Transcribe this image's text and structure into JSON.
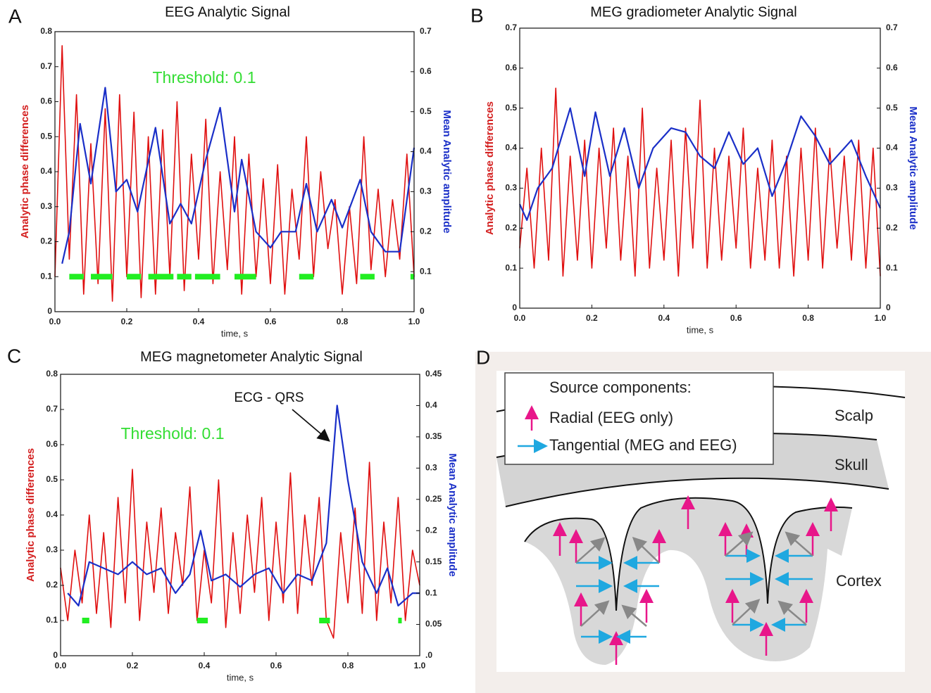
{
  "chart_data": [
    {
      "type": "line",
      "panel": "A",
      "title": "EEG Analytic Signal",
      "xlabel": "time, s",
      "ylabel": "Analytic phase differences",
      "y2label": "Mean Analytic amplitude",
      "xlim": [
        0,
        1
      ],
      "xticks": [
        {
          "value": 0,
          "label": "0.0"
        },
        0.2,
        0.4,
        0.6,
        0.8,
        {
          "value": 1,
          "label": "1.0"
        }
      ],
      "ylim": [
        0,
        0.8
      ],
      "yticks": [
        0,
        0.1,
        0.2,
        0.3,
        0.4,
        0.5,
        0.6,
        0.7,
        0.8
      ],
      "y2lim": [
        0,
        0.7
      ],
      "y2ticks": [
        0,
        0.1,
        0.2,
        0.3,
        0.4,
        0.5,
        0.6,
        0.7
      ],
      "series": [
        {
          "color": "#e01010",
          "x": [
            0,
            0.02,
            0.04,
            0.06,
            0.08,
            0.1,
            0.12,
            0.14,
            0.16,
            0.18,
            0.2,
            0.22,
            0.24,
            0.26,
            0.28,
            0.3,
            0.32,
            0.34,
            0.36,
            0.38,
            0.4,
            0.42,
            0.44,
            0.46,
            0.48,
            0.5,
            0.52,
            0.54,
            0.56,
            0.58,
            0.6,
            0.62,
            0.64,
            0.66,
            0.68,
            0.7,
            0.72,
            0.74,
            0.76,
            0.78,
            0.8,
            0.82,
            0.84,
            0.86,
            0.88,
            0.9,
            0.92,
            0.94,
            0.96,
            0.98,
            1.0
          ],
          "values": [
            0.1,
            0.76,
            0.15,
            0.62,
            0.05,
            0.48,
            0.08,
            0.58,
            0.03,
            0.62,
            0.1,
            0.57,
            0.04,
            0.5,
            0.05,
            0.52,
            0.1,
            0.6,
            0.06,
            0.45,
            0.15,
            0.55,
            0.08,
            0.4,
            0.12,
            0.5,
            0.05,
            0.45,
            0.1,
            0.38,
            0.08,
            0.42,
            0.05,
            0.35,
            0.15,
            0.5,
            0.1,
            0.4,
            0.18,
            0.32,
            0.05,
            0.3,
            0.08,
            0.5,
            0.12,
            0.35,
            0.1,
            0.32,
            0.15,
            0.45,
            0.1
          ]
        },
        {
          "color": "#1a2fc8",
          "axis": "y2",
          "x": [
            0.02,
            0.04,
            0.07,
            0.1,
            0.14,
            0.17,
            0.2,
            0.23,
            0.28,
            0.32,
            0.35,
            0.38,
            0.42,
            0.46,
            0.5,
            0.52,
            0.56,
            0.6,
            0.63,
            0.67,
            0.7,
            0.73,
            0.77,
            0.8,
            0.85,
            0.88,
            0.92,
            0.96,
            1.0
          ],
          "values": [
            0.12,
            0.2,
            0.47,
            0.32,
            0.56,
            0.3,
            0.33,
            0.25,
            0.46,
            0.22,
            0.27,
            0.22,
            0.38,
            0.51,
            0.25,
            0.38,
            0.2,
            0.16,
            0.2,
            0.2,
            0.32,
            0.2,
            0.28,
            0.21,
            0.33,
            0.2,
            0.15,
            0.15,
            0.41
          ]
        }
      ],
      "threshold": {
        "label": "Threshold: 0.1",
        "value": 0.1,
        "segments": [
          [
            0.04,
            0.08
          ],
          [
            0.1,
            0.16
          ],
          [
            0.2,
            0.24
          ],
          [
            0.26,
            0.33
          ],
          [
            0.34,
            0.38
          ],
          [
            0.39,
            0.46
          ],
          [
            0.5,
            0.56
          ],
          [
            0.68,
            0.72
          ],
          [
            0.85,
            0.89
          ],
          [
            0.99,
            1.0
          ]
        ]
      }
    },
    {
      "type": "line",
      "panel": "B",
      "title": "MEG gradiometer Analytic Signal",
      "xlabel": "time, s",
      "ylabel": "Analytic phase differences",
      "y2label": "Mean Analytic amplitude",
      "xlim": [
        0,
        1
      ],
      "xticks": [
        {
          "value": 0,
          "label": "0.0"
        },
        0.2,
        0.4,
        0.6,
        0.8,
        {
          "value": 1,
          "label": "1.0"
        }
      ],
      "ylim": [
        0,
        0.7
      ],
      "yticks": [
        0,
        0.1,
        0.2,
        0.3,
        0.4,
        0.5,
        0.6,
        0.7
      ],
      "y2lim": [
        0,
        0.7
      ],
      "y2ticks": [
        0,
        0.1,
        0.2,
        0.3,
        0.4,
        0.5,
        0.6,
        0.7
      ],
      "series": [
        {
          "color": "#e01010",
          "x": [
            0,
            0.02,
            0.04,
            0.06,
            0.08,
            0.1,
            0.12,
            0.14,
            0.16,
            0.18,
            0.2,
            0.22,
            0.24,
            0.26,
            0.28,
            0.3,
            0.32,
            0.34,
            0.36,
            0.38,
            0.4,
            0.42,
            0.44,
            0.46,
            0.48,
            0.5,
            0.52,
            0.54,
            0.56,
            0.58,
            0.6,
            0.62,
            0.64,
            0.66,
            0.68,
            0.7,
            0.72,
            0.74,
            0.76,
            0.78,
            0.8,
            0.82,
            0.84,
            0.86,
            0.88,
            0.9,
            0.92,
            0.94,
            0.96,
            0.98,
            1.0
          ],
          "values": [
            0.15,
            0.35,
            0.1,
            0.4,
            0.12,
            0.55,
            0.08,
            0.38,
            0.12,
            0.42,
            0.1,
            0.4,
            0.15,
            0.45,
            0.12,
            0.38,
            0.08,
            0.5,
            0.1,
            0.35,
            0.12,
            0.42,
            0.08,
            0.45,
            0.15,
            0.52,
            0.1,
            0.4,
            0.12,
            0.38,
            0.15,
            0.45,
            0.1,
            0.35,
            0.12,
            0.42,
            0.1,
            0.38,
            0.08,
            0.4,
            0.12,
            0.45,
            0.1,
            0.4,
            0.15,
            0.38,
            0.12,
            0.42,
            0.1,
            0.4,
            0.08
          ]
        },
        {
          "color": "#1a2fc8",
          "axis": "y2",
          "x": [
            0,
            0.02,
            0.05,
            0.09,
            0.14,
            0.18,
            0.21,
            0.25,
            0.29,
            0.33,
            0.37,
            0.42,
            0.46,
            0.5,
            0.54,
            0.58,
            0.62,
            0.66,
            0.7,
            0.74,
            0.78,
            0.82,
            0.86,
            0.9,
            0.92,
            0.96,
            1.0
          ],
          "values": [
            0.26,
            0.22,
            0.3,
            0.35,
            0.5,
            0.33,
            0.49,
            0.33,
            0.45,
            0.3,
            0.4,
            0.45,
            0.44,
            0.38,
            0.35,
            0.44,
            0.36,
            0.4,
            0.28,
            0.37,
            0.48,
            0.43,
            0.36,
            0.4,
            0.42,
            0.33,
            0.25
          ]
        }
      ]
    },
    {
      "type": "line",
      "panel": "C",
      "title": "MEG magnetometer Analytic Signal",
      "xlabel": "time, s",
      "ylabel": "Analytic phase differences",
      "y2label": "Mean Analytic amplitude",
      "annotation": "ECG - QRS",
      "xlim": [
        0,
        1
      ],
      "xticks": [
        {
          "value": 0,
          "label": "0.0"
        },
        0.2,
        0.4,
        0.6,
        0.8,
        {
          "value": 1,
          "label": "1.0"
        }
      ],
      "ylim": [
        0,
        0.8
      ],
      "yticks": [
        0,
        0.1,
        0.2,
        0.3,
        0.4,
        0.5,
        0.6,
        0.7,
        0.8
      ],
      "y2lim": [
        0,
        0.45
      ],
      "y2ticks": [
        {
          "value": 0,
          "label": ".0"
        },
        0.05,
        0.1,
        0.15,
        0.2,
        0.25,
        0.3,
        0.35,
        0.4,
        0.45
      ],
      "series": [
        {
          "color": "#e01010",
          "x": [
            0,
            0.02,
            0.04,
            0.06,
            0.08,
            0.1,
            0.12,
            0.14,
            0.16,
            0.18,
            0.2,
            0.22,
            0.24,
            0.26,
            0.28,
            0.3,
            0.32,
            0.34,
            0.36,
            0.38,
            0.4,
            0.42,
            0.44,
            0.46,
            0.48,
            0.5,
            0.52,
            0.54,
            0.56,
            0.58,
            0.6,
            0.62,
            0.64,
            0.66,
            0.68,
            0.7,
            0.72,
            0.74,
            0.76,
            0.78,
            0.8,
            0.82,
            0.84,
            0.86,
            0.88,
            0.9,
            0.92,
            0.94,
            0.96,
            0.98,
            1.0
          ],
          "values": [
            0.25,
            0.1,
            0.3,
            0.15,
            0.4,
            0.12,
            0.35,
            0.08,
            0.45,
            0.15,
            0.53,
            0.1,
            0.38,
            0.18,
            0.42,
            0.12,
            0.35,
            0.2,
            0.48,
            0.1,
            0.3,
            0.15,
            0.5,
            0.08,
            0.35,
            0.12,
            0.4,
            0.18,
            0.45,
            0.1,
            0.38,
            0.15,
            0.52,
            0.12,
            0.4,
            0.2,
            0.45,
            0.1,
            0.05,
            0.35,
            0.15,
            0.42,
            0.12,
            0.55,
            0.1,
            0.38,
            0.15,
            0.45,
            0.1,
            0.3,
            0.2
          ]
        },
        {
          "color": "#1a2fc8",
          "axis": "y2",
          "x": [
            0.02,
            0.05,
            0.08,
            0.12,
            0.16,
            0.2,
            0.24,
            0.28,
            0.32,
            0.36,
            0.39,
            0.42,
            0.46,
            0.5,
            0.54,
            0.58,
            0.62,
            0.66,
            0.7,
            0.74,
            0.77,
            0.8,
            0.84,
            0.88,
            0.91,
            0.94,
            0.98,
            1.0
          ],
          "values": [
            0.1,
            0.08,
            0.15,
            0.14,
            0.13,
            0.15,
            0.13,
            0.14,
            0.1,
            0.13,
            0.2,
            0.12,
            0.13,
            0.11,
            0.13,
            0.14,
            0.1,
            0.13,
            0.12,
            0.18,
            0.4,
            0.28,
            0.15,
            0.1,
            0.14,
            0.08,
            0.1,
            0.1
          ]
        }
      ],
      "threshold": {
        "label": "Threshold: 0.1",
        "value": 0.1,
        "segments": [
          [
            0.06,
            0.08
          ],
          [
            0.38,
            0.41
          ],
          [
            0.72,
            0.75
          ],
          [
            0.94,
            0.95
          ]
        ]
      }
    }
  ],
  "diagram": {
    "panel": "D",
    "legend_title": "Source components:",
    "legend_items": [
      "Radial (EEG only)",
      "Tangential (MEG and EEG)"
    ],
    "labels": {
      "scalp": "Scalp",
      "skull": "Skull",
      "cortex": "Cortex"
    }
  }
}
